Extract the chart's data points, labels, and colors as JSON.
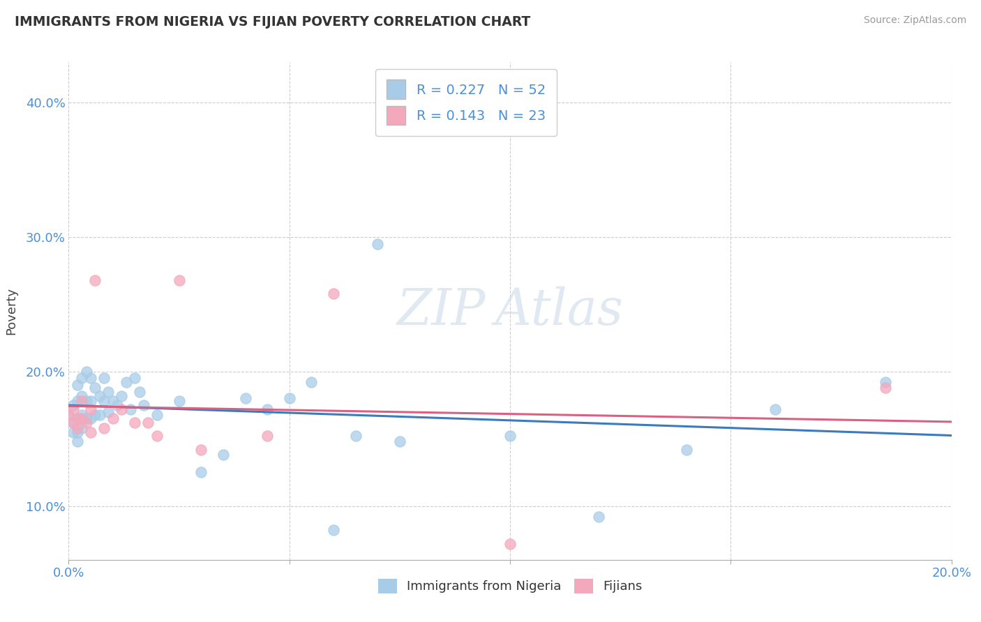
{
  "title": "IMMIGRANTS FROM NIGERIA VS FIJIAN POVERTY CORRELATION CHART",
  "source": "Source: ZipAtlas.com",
  "xlabel_blue": "Immigrants from Nigeria",
  "xlabel_pink": "Fijians",
  "ylabel": "Poverty",
  "r_blue": 0.227,
  "n_blue": 52,
  "r_pink": 0.143,
  "n_pink": 23,
  "color_blue": "#A8CCE8",
  "color_pink": "#F4A8BC",
  "line_blue": "#3A7ABD",
  "line_pink": "#D96080",
  "xlim": [
    0.0,
    0.2
  ],
  "ylim": [
    0.06,
    0.43
  ],
  "x_ticks_show": [
    0.0,
    0.2
  ],
  "x_ticks_grid": [
    0.0,
    0.05,
    0.1,
    0.15,
    0.2
  ],
  "y_ticks": [
    0.1,
    0.2,
    0.3,
    0.4
  ],
  "blue_x": [
    0.0,
    0.001,
    0.001,
    0.001,
    0.002,
    0.002,
    0.002,
    0.002,
    0.002,
    0.003,
    0.003,
    0.003,
    0.003,
    0.004,
    0.004,
    0.004,
    0.005,
    0.005,
    0.005,
    0.006,
    0.006,
    0.007,
    0.007,
    0.008,
    0.008,
    0.009,
    0.009,
    0.01,
    0.011,
    0.012,
    0.013,
    0.014,
    0.015,
    0.016,
    0.017,
    0.02,
    0.025,
    0.03,
    0.035,
    0.04,
    0.045,
    0.05,
    0.055,
    0.06,
    0.065,
    0.07,
    0.075,
    0.1,
    0.12,
    0.14,
    0.16,
    0.185
  ],
  "blue_y": [
    0.168,
    0.175,
    0.162,
    0.155,
    0.19,
    0.178,
    0.165,
    0.155,
    0.148,
    0.195,
    0.182,
    0.168,
    0.158,
    0.2,
    0.178,
    0.165,
    0.195,
    0.178,
    0.165,
    0.188,
    0.168,
    0.182,
    0.168,
    0.195,
    0.178,
    0.185,
    0.17,
    0.178,
    0.175,
    0.182,
    0.192,
    0.172,
    0.195,
    0.185,
    0.175,
    0.168,
    0.178,
    0.125,
    0.138,
    0.18,
    0.172,
    0.18,
    0.192,
    0.082,
    0.152,
    0.295,
    0.148,
    0.152,
    0.092,
    0.142,
    0.172,
    0.192
  ],
  "pink_x": [
    0.0,
    0.001,
    0.001,
    0.002,
    0.002,
    0.003,
    0.003,
    0.004,
    0.005,
    0.005,
    0.006,
    0.008,
    0.01,
    0.012,
    0.015,
    0.018,
    0.02,
    0.025,
    0.03,
    0.045,
    0.06,
    0.1,
    0.185
  ],
  "pink_y": [
    0.168,
    0.172,
    0.162,
    0.165,
    0.158,
    0.178,
    0.165,
    0.162,
    0.172,
    0.155,
    0.268,
    0.158,
    0.165,
    0.172,
    0.162,
    0.162,
    0.152,
    0.268,
    0.142,
    0.152,
    0.258,
    0.072,
    0.188
  ]
}
